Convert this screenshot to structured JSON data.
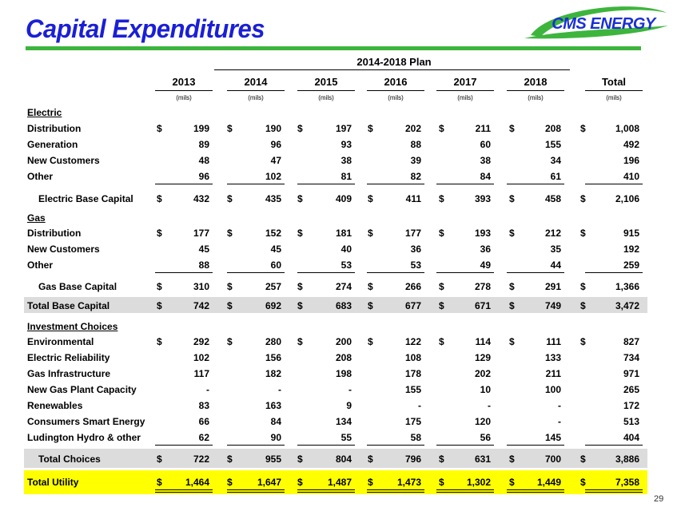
{
  "title": "Capital Expenditures",
  "logo": {
    "text": "CMS ENERGY"
  },
  "plan_header": "2014-2018 Plan",
  "columns": [
    {
      "year": "2013",
      "unit": "(mils)"
    },
    {
      "year": "2014",
      "unit": "(mils)"
    },
    {
      "year": "2015",
      "unit": "(mils)"
    },
    {
      "year": "2016",
      "unit": "(mils)"
    },
    {
      "year": "2017",
      "unit": "(mils)"
    },
    {
      "year": "2018",
      "unit": "(mils)"
    },
    {
      "year": "Total",
      "unit": "(mils)"
    }
  ],
  "sections": {
    "electric": {
      "heading": "Electric",
      "rows": [
        {
          "label": "Distribution",
          "values": [
            "199",
            "190",
            "197",
            "202",
            "211",
            "208",
            "1,008"
          ],
          "dollar": true
        },
        {
          "label": "Generation",
          "values": [
            "89",
            "96",
            "93",
            "88",
            "60",
            "155",
            "492"
          ],
          "dollar": false
        },
        {
          "label": "New Customers",
          "values": [
            "48",
            "47",
            "38",
            "39",
            "38",
            "34",
            "196"
          ],
          "dollar": false
        },
        {
          "label": "Other",
          "values": [
            "96",
            "102",
            "81",
            "82",
            "84",
            "61",
            "410"
          ],
          "dollar": false
        }
      ],
      "subtotal": {
        "label": "Electric Base Capital",
        "values": [
          "432",
          "435",
          "409",
          "411",
          "393",
          "458",
          "2,106"
        ]
      }
    },
    "gas": {
      "heading": "Gas",
      "rows": [
        {
          "label": "Distribution",
          "values": [
            "177",
            "152",
            "181",
            "177",
            "193",
            "212",
            "915"
          ],
          "dollar": true
        },
        {
          "label": "New Customers",
          "values": [
            "45",
            "45",
            "40",
            "36",
            "36",
            "35",
            "192"
          ],
          "dollar": false
        },
        {
          "label": "Other",
          "values": [
            "88",
            "60",
            "53",
            "53",
            "49",
            "44",
            "259"
          ],
          "dollar": false
        }
      ],
      "subtotal": {
        "label": "Gas Base Capital",
        "values": [
          "310",
          "257",
          "274",
          "266",
          "278",
          "291",
          "1,366"
        ]
      }
    },
    "total_base": {
      "label": "Total Base Capital",
      "values": [
        "742",
        "692",
        "683",
        "677",
        "671",
        "749",
        "3,472"
      ]
    },
    "investment": {
      "heading": "Investment Choices",
      "rows": [
        {
          "label": "Environmental",
          "values": [
            "292",
            "280",
            "200",
            "122",
            "114",
            "111",
            "827"
          ],
          "dollar": true
        },
        {
          "label": "Electric Reliability",
          "values": [
            "102",
            "156",
            "208",
            "108",
            "129",
            "133",
            "734"
          ],
          "dollar": false
        },
        {
          "label": "Gas Infrastructure",
          "values": [
            "117",
            "182",
            "198",
            "178",
            "202",
            "211",
            "971"
          ],
          "dollar": false
        },
        {
          "label": "New Gas Plant Capacity",
          "values": [
            "-",
            "-",
            "-",
            "155",
            "10",
            "100",
            "265"
          ],
          "dollar": false
        },
        {
          "label": "Renewables",
          "values": [
            "83",
            "163",
            "9",
            "-",
            "-",
            "-",
            "172"
          ],
          "dollar": false
        },
        {
          "label": "Consumers Smart Energy",
          "values": [
            "66",
            "84",
            "134",
            "175",
            "120",
            "-",
            "513"
          ],
          "dollar": false
        },
        {
          "label": "Ludington Hydro & other",
          "values": [
            "62",
            "90",
            "55",
            "58",
            "56",
            "145",
            "404"
          ],
          "dollar": false
        }
      ],
      "subtotal": {
        "label": "Total Choices",
        "values": [
          "722",
          "955",
          "804",
          "796",
          "631",
          "700",
          "3,886"
        ]
      }
    },
    "total_utility": {
      "label": "Total Utility",
      "values": [
        "1,464",
        "1,647",
        "1,487",
        "1,473",
        "1,302",
        "1,449",
        "7,358"
      ]
    }
  },
  "currency_symbol": "$",
  "page_number": "29",
  "colors": {
    "title": "#1a1fd6",
    "rule": "#3db53d",
    "shade": "#dcdcdc",
    "highlight": "#ffff00"
  }
}
